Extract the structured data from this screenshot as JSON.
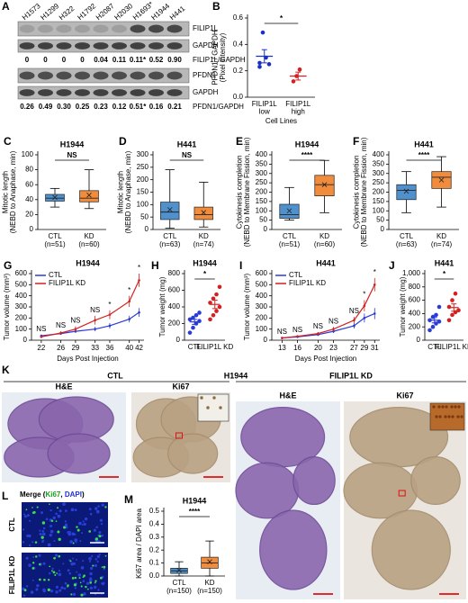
{
  "blot": {
    "panel": "A",
    "cell_lines": [
      {
        "name": "H1573",
        "color": "#1a2fc4"
      },
      {
        "name": "H1299",
        "color": "#1a2fc4"
      },
      {
        "name": "H322",
        "color": "#1a2fc4"
      },
      {
        "name": "H1792",
        "color": "#1a2fc4"
      },
      {
        "name": "H2087",
        "color": "#1a2fc4"
      },
      {
        "name": "H2030",
        "color": "#d42020"
      },
      {
        "name": "H1693*",
        "color": "#000000"
      },
      {
        "name": "H1944",
        "color": "#d42020"
      },
      {
        "name": "H441",
        "color": "#d42020"
      }
    ],
    "filip1l_label": "FILIP1L",
    "gapdh_label": "GAPDH",
    "filip1l_ratio_label": "FILIP1L/GAPDH",
    "filip1l_ratios": [
      "0",
      "0",
      "0",
      "0",
      "0.04",
      "0.11",
      "0.11*",
      "0.52",
      "0.90"
    ],
    "pfdn1_label": "PFDN1",
    "gapdh_label_2": "GAPDH",
    "pfdn1_ratio_label": "PFDN1/GAPDH",
    "pfdn1_ratios": [
      "0.26",
      "0.49",
      "0.30",
      "0.25",
      "0.23",
      "0.12",
      "0.51*",
      "0.16",
      "0.21"
    ]
  },
  "chart_data": [
    {
      "type": "strip",
      "panel": "B",
      "ylabel": [
        "PFDN1 / GAPDH",
        "(Pixel Intensity)"
      ],
      "xlabel": "Cell Lines",
      "categories": [
        [
          "FILIP1L",
          "low"
        ],
        [
          "FILIP1L",
          "high"
        ]
      ],
      "colors": [
        "#1a2fc4",
        "#d42020"
      ],
      "values": [
        [
          0.26,
          0.49,
          0.3,
          0.25,
          0.23
        ],
        [
          0.12,
          0.16,
          0.21
        ]
      ],
      "means": [
        0.31,
        0.16
      ],
      "errors": [
        0.05,
        0.03
      ],
      "significance": "*",
      "ylim": [
        0,
        0.6
      ],
      "yticks": [
        {
          "value": 0,
          "label": "0.0"
        },
        0.2,
        0.4,
        0.6
      ]
    },
    {
      "type": "box",
      "panel": "C",
      "title": "H1944",
      "ylabel": [
        "Mitotic length",
        "(NEBD to Anaphase, min)"
      ],
      "categories": [
        "CTL",
        "KD"
      ],
      "n_labels": [
        "(n=51)",
        "(n=60)"
      ],
      "colors": [
        "#4f90cd",
        "#f08c3c"
      ],
      "boxes": [
        {
          "min": 30,
          "q1": 38,
          "median": 42,
          "q3": 47,
          "max": 55,
          "mean": 43
        },
        {
          "min": 28,
          "q1": 37,
          "median": 42,
          "q3": 52,
          "max": 80,
          "mean": 46
        }
      ],
      "significance": "NS",
      "ylim": [
        0,
        100
      ],
      "yticks": [
        0,
        20,
        40,
        60,
        80,
        100
      ]
    },
    {
      "type": "box",
      "panel": "D",
      "title": "H441",
      "ylabel": [
        "Mitotic length",
        "(NEBD to Anaphase, min)"
      ],
      "categories": [
        "CTL",
        "KD"
      ],
      "n_labels": [
        "(n=63)",
        "(n=74)"
      ],
      "colors": [
        "#4f90cd",
        "#f08c3c"
      ],
      "boxes": [
        {
          "min": 5,
          "q1": 40,
          "median": 70,
          "q3": 110,
          "max": 240,
          "mean": 80
        },
        {
          "min": 10,
          "q1": 40,
          "median": 60,
          "q3": 90,
          "max": 190,
          "mean": 68
        }
      ],
      "significance": "NS",
      "ylim": [
        0,
        300
      ],
      "yticks": [
        0,
        50,
        100,
        150,
        200,
        250,
        300
      ]
    },
    {
      "type": "box",
      "panel": "E",
      "title": "H1944",
      "ylabel": [
        "Cytokinesis completion",
        "(NEBD to Membrane Fission, min)"
      ],
      "categories": [
        "CTL",
        "KD"
      ],
      "n_labels": [
        "(n=51)",
        "(n=60)"
      ],
      "colors": [
        "#4f90cd",
        "#f08c3c"
      ],
      "boxes": [
        {
          "min": 50,
          "q1": 60,
          "median": 80,
          "q3": 135,
          "max": 225,
          "mean": 100
        },
        {
          "min": 90,
          "q1": 180,
          "median": 240,
          "q3": 290,
          "max": 370,
          "mean": 240
        }
      ],
      "significance": "****",
      "ylim": [
        0,
        400
      ],
      "yticks": [
        0,
        50,
        100,
        150,
        200,
        250,
        300,
        350,
        400
      ]
    },
    {
      "type": "box",
      "panel": "F",
      "title": "H441",
      "ylabel": [
        "Cytokinesis completion",
        "(NEBD to Membrane Fission, min)"
      ],
      "categories": [
        "CTL",
        "KD"
      ],
      "n_labels": [
        "(n=63)",
        "(n=74)"
      ],
      "colors": [
        "#4f90cd",
        "#f08c3c"
      ],
      "boxes": [
        {
          "min": 90,
          "q1": 160,
          "median": 210,
          "q3": 240,
          "max": 310,
          "mean": 205
        },
        {
          "min": 120,
          "q1": 220,
          "median": 280,
          "q3": 310,
          "max": 390,
          "mean": 265
        }
      ],
      "significance": "****",
      "ylim": [
        0,
        400
      ],
      "yticks": [
        0,
        50,
        100,
        150,
        200,
        250,
        300,
        350,
        400
      ]
    },
    {
      "type": "line",
      "panel": "G",
      "title": "H1944",
      "ylabel": [
        "Tumor volume (mm³)"
      ],
      "xlabel": "Days Post Injection",
      "x": [
        22,
        26,
        29,
        33,
        36,
        40,
        42
      ],
      "xlim": [
        20,
        43
      ],
      "xticks": [
        22,
        26,
        29,
        33,
        36,
        40,
        42
      ],
      "series": [
        {
          "name": "CTL",
          "color": "#2b3bd6",
          "values": [
            40,
            60,
            80,
            100,
            130,
            190,
            250
          ],
          "errors": [
            10,
            10,
            15,
            20,
            25,
            30,
            40
          ]
        },
        {
          "name": "FILIP1L KD",
          "color": "#d42020",
          "values": [
            30,
            65,
            100,
            180,
            230,
            350,
            540
          ],
          "errors": [
            10,
            15,
            25,
            40,
            40,
            50,
            60
          ]
        }
      ],
      "significance": [
        "NS",
        "NS",
        "NS",
        "NS",
        "*",
        "*",
        "*"
      ],
      "legend": "top-left",
      "ylim": [
        0,
        600
      ],
      "yticks": [
        0,
        100,
        200,
        300,
        400,
        500,
        600
      ]
    },
    {
      "type": "strip",
      "panel": "H",
      "title": "H1944",
      "ylabel": [
        "Tumor weight (mg)"
      ],
      "categories": [
        "CTL",
        "FILIP1L KD"
      ],
      "colors": [
        "#2b3bd6",
        "#d42020"
      ],
      "values": [
        [
          90,
          150,
          200,
          230,
          250,
          270,
          300,
          330
        ],
        [
          250,
          300,
          350,
          400,
          450,
          500,
          550,
          640
        ]
      ],
      "means": [
        220,
        430
      ],
      "errors": [
        30,
        50
      ],
      "significance": "*",
      "ylim": [
        0,
        800
      ],
      "yticks": [
        0,
        200,
        400,
        600,
        800
      ]
    },
    {
      "type": "line",
      "panel": "I",
      "title": "H441",
      "ylabel": [
        "Tumor volume (mm³)"
      ],
      "xlabel": "Days Post Injection",
      "x": [
        13,
        16,
        20,
        23,
        27,
        29,
        31
      ],
      "xlim": [
        11,
        32
      ],
      "xticks": [
        13,
        16,
        20,
        23,
        27,
        29,
        31
      ],
      "series": [
        {
          "name": "CTL",
          "color": "#2b3bd6",
          "values": [
            20,
            30,
            50,
            80,
            130,
            200,
            240
          ],
          "errors": [
            5,
            8,
            10,
            15,
            25,
            40,
            50
          ]
        },
        {
          "name": "FILIP1L KD",
          "color": "#d42020",
          "values": [
            20,
            35,
            60,
            100,
            180,
            310,
            500
          ],
          "errors": [
            5,
            8,
            12,
            20,
            30,
            50,
            60
          ]
        }
      ],
      "significance": [
        "NS",
        "NS",
        "NS",
        "NS",
        "NS",
        "*",
        "*"
      ],
      "legend": "top-left",
      "ylim": [
        0,
        600
      ],
      "yticks": [
        0,
        100,
        200,
        300,
        400,
        500,
        600
      ]
    },
    {
      "type": "strip",
      "panel": "J",
      "title": "H441",
      "ylabel": [
        "Tumor weight (mg)"
      ],
      "categories": [
        "CTL",
        "FILIP1L KD"
      ],
      "colors": [
        "#2b3bd6",
        "#d42020"
      ],
      "values": [
        [
          150,
          200,
          250,
          280,
          300,
          350,
          380,
          500
        ],
        [
          300,
          380,
          420,
          450,
          500,
          600,
          700
        ]
      ],
      "means": [
        300,
        490
      ],
      "errors": [
        40,
        55
      ],
      "significance": "*",
      "ylim": [
        0,
        1000
      ],
      "yticks": [
        0,
        200,
        400,
        600,
        800,
        {
          "value": 1000,
          "label": "1,000"
        }
      ]
    },
    {
      "type": "box",
      "panel": "M",
      "title": "H1944",
      "ylabel": [
        "Ki67 area / DAPI area"
      ],
      "categories": [
        "CTL",
        "KD"
      ],
      "n_labels": [
        "(n=150)",
        "(n=150)"
      ],
      "colors": [
        "#4f90cd",
        "#f08c3c"
      ],
      "boxes": [
        {
          "min": 0,
          "q1": 0.02,
          "median": 0.04,
          "q3": 0.06,
          "max": 0.11,
          "mean": 0.045
        },
        {
          "min": 0,
          "q1": 0.06,
          "median": 0.1,
          "q3": 0.145,
          "max": 0.27,
          "mean": 0.11
        }
      ],
      "significance": "****",
      "ylim": [
        0,
        0.5
      ],
      "yticks": [
        {
          "value": 0,
          "label": "0.0"
        },
        0.1,
        0.2,
        0.3,
        0.4,
        0.5
      ]
    }
  ],
  "images_k": {
    "panel": "K",
    "title": "H1944",
    "groups": [
      {
        "name": "CTL",
        "stains": [
          "H&E",
          "Ki67"
        ]
      },
      {
        "name": "FILIP1L KD",
        "stains": [
          "H&E",
          "Ki67"
        ]
      }
    ]
  },
  "images_l": {
    "panel": "L",
    "title_parts": [
      {
        "text": "Merge (",
        "color": "#000000"
      },
      {
        "text": "Ki67",
        "color": "#1aa01a"
      },
      {
        "text": ", ",
        "color": "#000000"
      },
      {
        "text": "DAPI",
        "color": "#2030d0"
      },
      {
        "text": ")",
        "color": "#000000"
      }
    ],
    "rows": [
      "CTL",
      "FILIP1L KD"
    ]
  }
}
